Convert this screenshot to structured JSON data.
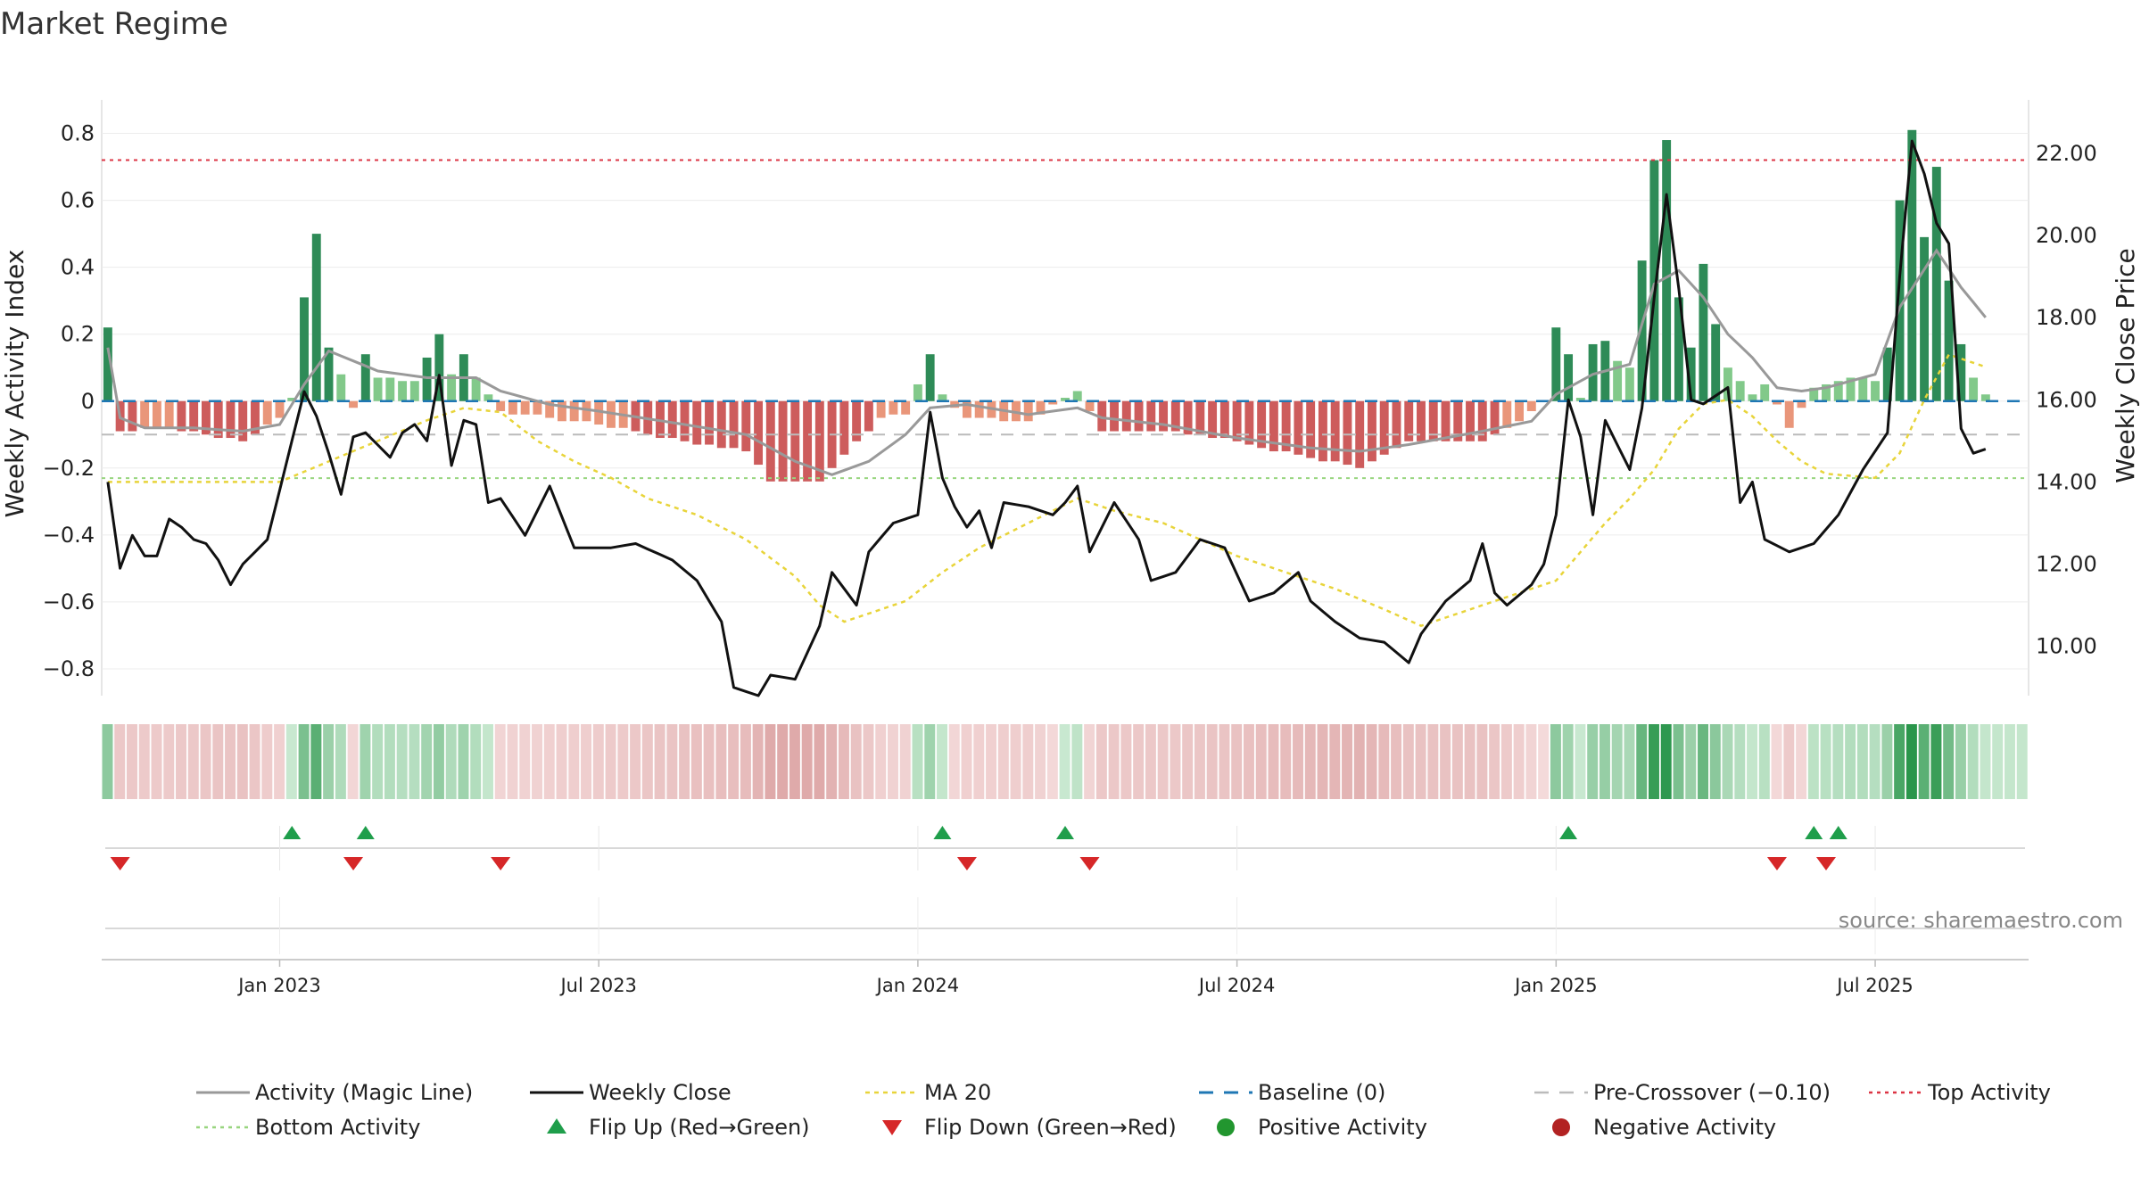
{
  "title": "Market Regime",
  "source_note": "source: sharemaestro.com",
  "chart_data": {
    "type": "bar",
    "y_left_label": "Weekly Activity Index",
    "y_right_label": "Weekly Close Price",
    "y_left_ticks": [
      "0.8",
      "0.6",
      "0.4",
      "0.2",
      "0",
      "−0.2",
      "−0.4",
      "−0.6",
      "−0.8"
    ],
    "y_left_tick_values": [
      0.8,
      0.6,
      0.4,
      0.2,
      0,
      -0.2,
      -0.4,
      -0.6,
      -0.8
    ],
    "y_right_ticks": [
      "22.00",
      "20.00",
      "18.00",
      "16.00",
      "14.00",
      "12.00",
      "10.00"
    ],
    "y_right_tick_values": [
      22,
      20,
      18,
      16,
      14,
      12,
      10
    ],
    "ylim_left": [
      -0.88,
      0.9
    ],
    "ylim_right": [
      8.8,
      23.3
    ],
    "x_ticks": [
      "Jan 2023",
      "Jul 2023",
      "Jan 2024",
      "Jul 2024",
      "Jan 2025",
      "Jul 2025"
    ],
    "x_tick_week_index": [
      14,
      40,
      66,
      92,
      118,
      144
    ],
    "week_count": 157,
    "reference_lines": {
      "top_activity": 0.72,
      "bottom_activity": -0.23,
      "pre_crossover": -0.1,
      "baseline": 0
    },
    "activity_keypoints": [
      [
        0,
        0.22
      ],
      [
        1,
        -0.09
      ],
      [
        4,
        -0.08
      ],
      [
        8,
        -0.1
      ],
      [
        11,
        -0.12
      ],
      [
        14,
        -0.05
      ],
      [
        15,
        0.01
      ],
      [
        16,
        0.31
      ],
      [
        17,
        0.5
      ],
      [
        18,
        0.16
      ],
      [
        19,
        0.08
      ],
      [
        20,
        -0.02
      ],
      [
        21,
        0.14
      ],
      [
        22,
        0.07
      ],
      [
        25,
        0.06
      ],
      [
        27,
        0.2
      ],
      [
        28,
        0.08
      ],
      [
        29,
        0.14
      ],
      [
        30,
        0.07
      ],
      [
        32,
        -0.03
      ],
      [
        40,
        -0.07
      ],
      [
        47,
        -0.12
      ],
      [
        52,
        -0.15
      ],
      [
        54,
        -0.24
      ],
      [
        58,
        -0.24
      ],
      [
        60,
        -0.16
      ],
      [
        63,
        -0.05
      ],
      [
        65,
        -0.04
      ],
      [
        67,
        0.14
      ],
      [
        68,
        0.02
      ],
      [
        70,
        -0.05
      ],
      [
        75,
        -0.06
      ],
      [
        79,
        0.03
      ],
      [
        81,
        -0.09
      ],
      [
        86,
        -0.09
      ],
      [
        92,
        -0.12
      ],
      [
        98,
        -0.17
      ],
      [
        102,
        -0.2
      ],
      [
        106,
        -0.12
      ],
      [
        112,
        -0.12
      ],
      [
        115,
        -0.06
      ],
      [
        117,
        0
      ],
      [
        118,
        0.22
      ],
      [
        119,
        0.14
      ],
      [
        120,
        0.01
      ],
      [
        121,
        0.17
      ],
      [
        122,
        0.18
      ],
      [
        123,
        0.12
      ],
      [
        124,
        0.1
      ],
      [
        125,
        0.42
      ],
      [
        126,
        0.72
      ],
      [
        127,
        0.78
      ],
      [
        128,
        0.31
      ],
      [
        129,
        0.16
      ],
      [
        130,
        0.41
      ],
      [
        131,
        0.23
      ],
      [
        132,
        0.1
      ],
      [
        134,
        0.02
      ],
      [
        135,
        0.05
      ],
      [
        137,
        -0.08
      ],
      [
        139,
        0.04
      ],
      [
        141,
        0.06
      ],
      [
        143,
        0.07
      ],
      [
        144,
        0.06
      ],
      [
        145,
        0.16
      ],
      [
        146,
        0.6
      ],
      [
        147,
        0.81
      ],
      [
        148,
        0.49
      ],
      [
        149,
        0.7
      ],
      [
        150,
        0.36
      ],
      [
        151,
        0.17
      ],
      [
        152,
        0.07
      ],
      [
        153,
        0.02
      ]
    ],
    "magic_line_keypoints": [
      [
        0,
        0.16
      ],
      [
        1,
        -0.05
      ],
      [
        3,
        -0.08
      ],
      [
        7,
        -0.08
      ],
      [
        11,
        -0.09
      ],
      [
        14,
        -0.07
      ],
      [
        16,
        0.05
      ],
      [
        18,
        0.15
      ],
      [
        20,
        0.12
      ],
      [
        22,
        0.09
      ],
      [
        26,
        0.07
      ],
      [
        30,
        0.07
      ],
      [
        32,
        0.03
      ],
      [
        36,
        -0.01
      ],
      [
        40,
        -0.03
      ],
      [
        47,
        -0.07
      ],
      [
        52,
        -0.1
      ],
      [
        56,
        -0.18
      ],
      [
        59,
        -0.22
      ],
      [
        62,
        -0.18
      ],
      [
        65,
        -0.1
      ],
      [
        67,
        -0.02
      ],
      [
        70,
        -0.01
      ],
      [
        75,
        -0.04
      ],
      [
        79,
        -0.02
      ],
      [
        81,
        -0.05
      ],
      [
        86,
        -0.07
      ],
      [
        92,
        -0.11
      ],
      [
        98,
        -0.14
      ],
      [
        102,
        -0.15
      ],
      [
        106,
        -0.13
      ],
      [
        112,
        -0.09
      ],
      [
        116,
        -0.06
      ],
      [
        118,
        0.02
      ],
      [
        121,
        0.08
      ],
      [
        124,
        0.11
      ],
      [
        126,
        0.35
      ],
      [
        128,
        0.39
      ],
      [
        130,
        0.31
      ],
      [
        132,
        0.2
      ],
      [
        134,
        0.13
      ],
      [
        136,
        0.04
      ],
      [
        138,
        0.03
      ],
      [
        140,
        0.04
      ],
      [
        144,
        0.08
      ],
      [
        146,
        0.28
      ],
      [
        149,
        0.45
      ],
      [
        151,
        0.34
      ],
      [
        153,
        0.25
      ]
    ],
    "weekly_close_keypoints": [
      [
        0,
        14.0
      ],
      [
        1,
        11.9
      ],
      [
        2,
        12.7
      ],
      [
        3,
        12.2
      ],
      [
        4,
        12.2
      ],
      [
        5,
        13.1
      ],
      [
        6,
        12.9
      ],
      [
        7,
        12.6
      ],
      [
        8,
        12.5
      ],
      [
        9,
        12.1
      ],
      [
        10,
        11.5
      ],
      [
        11,
        12.0
      ],
      [
        12,
        12.3
      ],
      [
        13,
        12.6
      ],
      [
        14,
        13.8
      ],
      [
        15,
        15.0
      ],
      [
        16,
        16.2
      ],
      [
        17,
        15.6
      ],
      [
        18,
        14.7
      ],
      [
        19,
        13.7
      ],
      [
        20,
        15.1
      ],
      [
        21,
        15.2
      ],
      [
        22,
        14.9
      ],
      [
        23,
        14.6
      ],
      [
        24,
        15.2
      ],
      [
        25,
        15.4
      ],
      [
        26,
        15.0
      ],
      [
        27,
        16.6
      ],
      [
        28,
        14.4
      ],
      [
        29,
        15.5
      ],
      [
        30,
        15.4
      ],
      [
        31,
        13.5
      ],
      [
        32,
        13.6
      ],
      [
        34,
        12.7
      ],
      [
        36,
        13.9
      ],
      [
        38,
        12.4
      ],
      [
        41,
        12.4
      ],
      [
        43,
        12.5
      ],
      [
        46,
        12.1
      ],
      [
        48,
        11.6
      ],
      [
        50,
        10.6
      ],
      [
        51,
        9.0
      ],
      [
        53,
        8.8
      ],
      [
        54,
        9.3
      ],
      [
        56,
        9.2
      ],
      [
        58,
        10.5
      ],
      [
        59,
        11.8
      ],
      [
        61,
        11.0
      ],
      [
        62,
        12.3
      ],
      [
        64,
        13.0
      ],
      [
        66,
        13.2
      ],
      [
        67,
        15.7
      ],
      [
        68,
        14.1
      ],
      [
        69,
        13.4
      ],
      [
        70,
        12.9
      ],
      [
        71,
        13.3
      ],
      [
        72,
        12.4
      ],
      [
        73,
        13.5
      ],
      [
        75,
        13.4
      ],
      [
        77,
        13.2
      ],
      [
        78,
        13.5
      ],
      [
        79,
        13.9
      ],
      [
        80,
        12.3
      ],
      [
        82,
        13.5
      ],
      [
        84,
        12.6
      ],
      [
        85,
        11.6
      ],
      [
        87,
        11.8
      ],
      [
        89,
        12.6
      ],
      [
        91,
        12.4
      ],
      [
        93,
        11.1
      ],
      [
        95,
        11.3
      ],
      [
        97,
        11.8
      ],
      [
        98,
        11.1
      ],
      [
        100,
        10.6
      ],
      [
        102,
        10.2
      ],
      [
        104,
        10.1
      ],
      [
        106,
        9.6
      ],
      [
        107,
        10.3
      ],
      [
        109,
        11.1
      ],
      [
        111,
        11.6
      ],
      [
        112,
        12.5
      ],
      [
        113,
        11.3
      ],
      [
        114,
        11.0
      ],
      [
        116,
        11.5
      ],
      [
        117,
        12.0
      ],
      [
        118,
        13.2
      ],
      [
        119,
        16.0
      ],
      [
        120,
        15.1
      ],
      [
        121,
        13.2
      ],
      [
        122,
        15.5
      ],
      [
        124,
        14.3
      ],
      [
        125,
        15.8
      ],
      [
        126,
        18.5
      ],
      [
        127,
        21.0
      ],
      [
        128,
        18.7
      ],
      [
        129,
        16.0
      ],
      [
        130,
        15.9
      ],
      [
        132,
        16.3
      ],
      [
        133,
        13.5
      ],
      [
        134,
        14.0
      ],
      [
        135,
        12.6
      ],
      [
        137,
        12.3
      ],
      [
        139,
        12.5
      ],
      [
        141,
        13.2
      ],
      [
        143,
        14.3
      ],
      [
        145,
        15.2
      ],
      [
        146,
        19.0
      ],
      [
        147,
        22.3
      ],
      [
        148,
        21.5
      ],
      [
        149,
        20.3
      ],
      [
        150,
        19.8
      ],
      [
        151,
        15.3
      ],
      [
        152,
        14.7
      ],
      [
        153,
        14.8
      ]
    ],
    "ma20_keypoints": [
      [
        0,
        14.0
      ],
      [
        5,
        14.0
      ],
      [
        10,
        14.0
      ],
      [
        14,
        14.0
      ],
      [
        18,
        14.5
      ],
      [
        22,
        15.0
      ],
      [
        26,
        15.5
      ],
      [
        29,
        15.8
      ],
      [
        32,
        15.7
      ],
      [
        35,
        15.0
      ],
      [
        38,
        14.5
      ],
      [
        41,
        14.1
      ],
      [
        44,
        13.6
      ],
      [
        48,
        13.2
      ],
      [
        52,
        12.6
      ],
      [
        56,
        11.7
      ],
      [
        58,
        11.0
      ],
      [
        60,
        10.6
      ],
      [
        62,
        10.8
      ],
      [
        65,
        11.1
      ],
      [
        68,
        11.8
      ],
      [
        71,
        12.4
      ],
      [
        75,
        13.0
      ],
      [
        79,
        13.6
      ],
      [
        82,
        13.3
      ],
      [
        86,
        13.0
      ],
      [
        89,
        12.6
      ],
      [
        92,
        12.2
      ],
      [
        96,
        11.8
      ],
      [
        100,
        11.4
      ],
      [
        104,
        10.9
      ],
      [
        107,
        10.5
      ],
      [
        110,
        10.8
      ],
      [
        114,
        11.2
      ],
      [
        116,
        11.4
      ],
      [
        118,
        11.6
      ],
      [
        120,
        12.3
      ],
      [
        122,
        13.0
      ],
      [
        124,
        13.6
      ],
      [
        126,
        14.3
      ],
      [
        128,
        15.3
      ],
      [
        130,
        15.9
      ],
      [
        132,
        16.0
      ],
      [
        134,
        15.6
      ],
      [
        136,
        15.0
      ],
      [
        138,
        14.5
      ],
      [
        140,
        14.2
      ],
      [
        144,
        14.1
      ],
      [
        146,
        14.7
      ],
      [
        148,
        16.0
      ],
      [
        150,
        17.1
      ],
      [
        153,
        16.8
      ]
    ],
    "flip_up_weeks": [
      15,
      21,
      68,
      78,
      119,
      139,
      141
    ],
    "flip_down_weeks": [
      1,
      20,
      32,
      70,
      80,
      136,
      140
    ],
    "legend": [
      "Activity (Magic Line)",
      "Weekly Close",
      "MA 20",
      "Baseline (0)",
      "Pre-Crossover (−0.10)",
      "Top Activity",
      "Bottom Activity",
      "Flip Up (Red→Green)",
      "Flip Down (Green→Red)",
      "Positive Activity",
      "Negative Activity"
    ],
    "legend_placement": "bottom",
    "colors": {
      "positive_strong": "#2e8b57",
      "positive_weak": "#82c98a",
      "negative_strong": "#cd5c5c",
      "negative_weak": "#e9967a",
      "magic_line": "#999999",
      "close": "#111111",
      "ma20": "#e8d43a",
      "baseline": "#1f77b4",
      "pre_crossover": "#bbbbbb",
      "top_activity": "#dc3545",
      "bottom_activity": "#98d57f",
      "flip_up": "#1f9e4b",
      "flip_down": "#d62728",
      "positive_dot": "#22962f",
      "negative_dot": "#b22222"
    }
  }
}
